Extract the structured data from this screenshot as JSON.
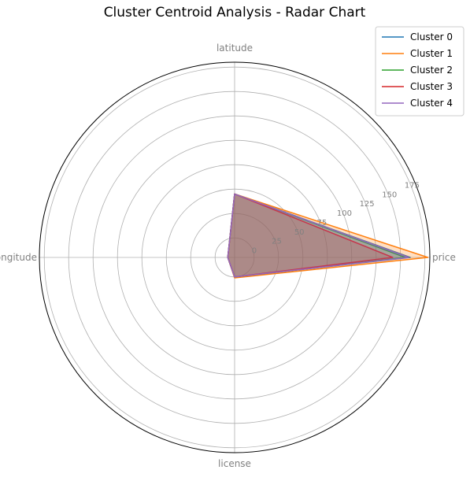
{
  "chart_data": {
    "type": "radar",
    "title": "Cluster Centroid Analysis - Radar Chart",
    "axes": [
      "price",
      "latitude",
      "longitude",
      "license"
    ],
    "radial_ticks": [
      0,
      25,
      50,
      75,
      100,
      125,
      150,
      175
    ],
    "rlim": [
      -20,
      180
    ],
    "legend_position": "top-right",
    "grid": true,
    "series": [
      {
        "name": "Cluster 0",
        "color": "#1f77b4",
        "values": [
          160,
          45,
          -13,
          0
        ]
      },
      {
        "name": "Cluster 1",
        "color": "#ff7f0e",
        "values": [
          178,
          45,
          -13,
          1
        ]
      },
      {
        "name": "Cluster 2",
        "color": "#2ca02c",
        "values": [
          155,
          45,
          -13,
          0
        ]
      },
      {
        "name": "Cluster 3",
        "color": "#d62728",
        "values": [
          142,
          45,
          -13,
          0
        ]
      },
      {
        "name": "Cluster 4",
        "color": "#9467bd",
        "values": [
          158,
          45,
          -13,
          0
        ]
      }
    ]
  }
}
